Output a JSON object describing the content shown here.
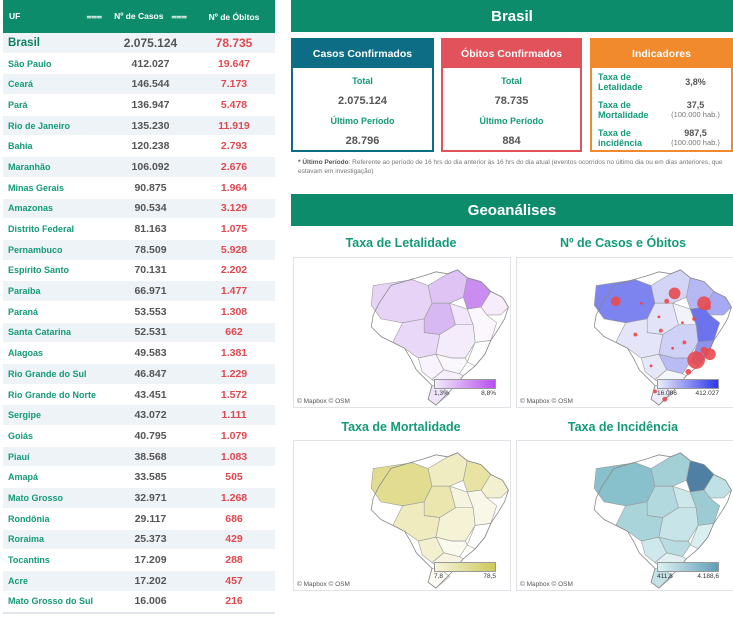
{
  "table": {
    "headers": {
      "uf": "UF",
      "cases": "Nº de Casos",
      "deaths": "Nº de Óbitos"
    },
    "total": {
      "uf": "Brasil",
      "cases": "2.075.124",
      "deaths": "78.735"
    },
    "rows": [
      {
        "uf": "São Paulo",
        "cases": "412.027",
        "deaths": "19.647"
      },
      {
        "uf": "Ceará",
        "cases": "146.544",
        "deaths": "7.173"
      },
      {
        "uf": "Pará",
        "cases": "136.947",
        "deaths": "5.478"
      },
      {
        "uf": "Rio de Janeiro",
        "cases": "135.230",
        "deaths": "11.919"
      },
      {
        "uf": "Bahia",
        "cases": "120.238",
        "deaths": "2.793"
      },
      {
        "uf": "Maranhão",
        "cases": "106.092",
        "deaths": "2.676"
      },
      {
        "uf": "Minas Gerais",
        "cases": "90.875",
        "deaths": "1.964"
      },
      {
        "uf": "Amazonas",
        "cases": "90.534",
        "deaths": "3.129"
      },
      {
        "uf": "Distrito Federal",
        "cases": "81.163",
        "deaths": "1.075"
      },
      {
        "uf": "Pernambuco",
        "cases": "78.509",
        "deaths": "5.928"
      },
      {
        "uf": "Espírito Santo",
        "cases": "70.131",
        "deaths": "2.202"
      },
      {
        "uf": "Paraíba",
        "cases": "66.971",
        "deaths": "1.477"
      },
      {
        "uf": "Paraná",
        "cases": "53.553",
        "deaths": "1.308"
      },
      {
        "uf": "Santa Catarina",
        "cases": "52.531",
        "deaths": "662"
      },
      {
        "uf": "Alagoas",
        "cases": "49.583",
        "deaths": "1.381"
      },
      {
        "uf": "Rio Grande do Sul",
        "cases": "46.847",
        "deaths": "1.229"
      },
      {
        "uf": "Rio Grande do Norte",
        "cases": "43.451",
        "deaths": "1.572"
      },
      {
        "uf": "Sergipe",
        "cases": "43.072",
        "deaths": "1.111"
      },
      {
        "uf": "Goiás",
        "cases": "40.795",
        "deaths": "1.079"
      },
      {
        "uf": "Piauí",
        "cases": "38.568",
        "deaths": "1.083"
      },
      {
        "uf": "Amapá",
        "cases": "33.585",
        "deaths": "505"
      },
      {
        "uf": "Mato Grosso",
        "cases": "32.971",
        "deaths": "1.268"
      },
      {
        "uf": "Rondônia",
        "cases": "29.117",
        "deaths": "686"
      },
      {
        "uf": "Roraima",
        "cases": "25.373",
        "deaths": "429"
      },
      {
        "uf": "Tocantins",
        "cases": "17.209",
        "deaths": "288"
      },
      {
        "uf": "Acre",
        "cases": "17.202",
        "deaths": "457"
      },
      {
        "uf": "Mato Grosso do Sul",
        "cases": "16.006",
        "deaths": "216"
      }
    ]
  },
  "brasil": {
    "title": "Brasil",
    "confirmed": {
      "title": "Casos Confirmados",
      "total_label": "Total",
      "total": "2.075.124",
      "period_label": "Último Período",
      "period": "28.796"
    },
    "deaths": {
      "title": "Óbitos Confirmados",
      "total_label": "Total",
      "total": "78.735",
      "period_label": "Último Período",
      "period": "884"
    },
    "indicators": {
      "title": "Indicadores",
      "items": [
        {
          "label": "Taxa de Letalidade",
          "value": "3,8%",
          "unit": ""
        },
        {
          "label": "Taxa de Mortalidade",
          "value": "37,5",
          "unit": "(100.000 hab.)"
        },
        {
          "label": "Taxa de incidência",
          "value": "987,5",
          "unit": "(100.000 hab.)"
        }
      ]
    },
    "note_bold": "* Último Período",
    "note_text": ": Referente ao período de 16 hrs do dia anterior às 16 hrs do dia atual (eventos ocorridos no último dia ou em dias anteriores, que estavam em investigação)"
  },
  "geo": {
    "title": "Geoanálises",
    "credit": "© Mapbox  © OSM",
    "maps": [
      {
        "title": "Taxa de Letalidade",
        "min": "1,3%",
        "max": "8,8%",
        "color_low": "#f1ecfb",
        "color_high": "#b84ff0",
        "accent": "#c43bf0"
      },
      {
        "title": "Nº de Casos e Óbitos",
        "min": "16.006",
        "max": "412.027",
        "color_low": "#ecedfb",
        "color_high": "#2e35e8",
        "accent": "#e84a4f"
      },
      {
        "title": "Taxa de Mortalidade",
        "min": "7,8",
        "max": "78,5",
        "color_low": "#f6f4dc",
        "color_high": "#cfc85a",
        "accent": "#cfc85a"
      },
      {
        "title": "Taxa de Incidência",
        "min": "411,8",
        "max": "4.188,6",
        "color_low": "#def2f3",
        "color_high": "#5e9fb7",
        "accent": "#4f7fa2"
      }
    ]
  }
}
